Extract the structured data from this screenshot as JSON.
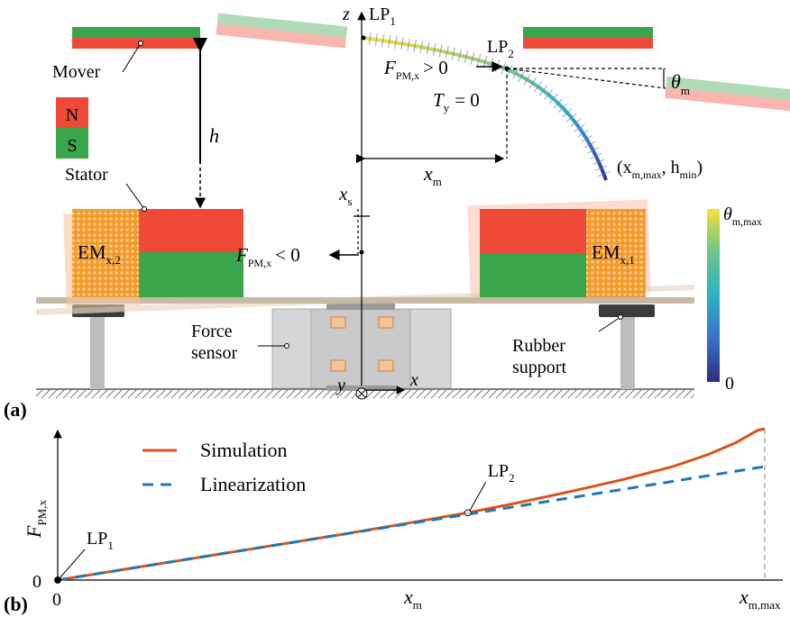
{
  "panel_a": {
    "label": "(a)",
    "axes": {
      "z": "z",
      "x": "x",
      "y": "y"
    },
    "legend_poles": {
      "north": "N",
      "south": "S"
    },
    "labels": {
      "mover": "Mover",
      "h": "h",
      "stator": "Stator",
      "em2_main": "EM",
      "em2_sub": "x,2",
      "em1_main": "EM",
      "em1_sub": "x,1",
      "force_sensor_1": "Force",
      "force_sensor_2": "sensor",
      "rubber_1": "Rubber",
      "rubber_2": "support",
      "xs_main": "x",
      "xs_sub": "s",
      "xm_main": "x",
      "xm_sub": "m",
      "lp1_main": "LP",
      "lp1_sub": "1",
      "lp2_main": "LP",
      "lp2_sub": "2",
      "fpos_main": "F",
      "fpos_sub": "PM,x",
      "fpos_rel": "> 0",
      "fneg_main": "F",
      "fneg_sub": "PM,x",
      "fneg_rel": "< 0",
      "ty_main": "T",
      "ty_sub": "y",
      "ty_rel": "= 0",
      "theta_main": "θ",
      "theta_sub": "m",
      "end_open": "(x",
      "end_sub1": "m,max",
      "end_mid": ", h",
      "end_sub2": "min",
      "end_close": ")"
    },
    "colorbar": {
      "top_main": "θ",
      "top_sub": "m,max",
      "bottom": "0",
      "colors": [
        "#2b2f7f",
        "#3a6fc9",
        "#2bb2c3",
        "#6cc58a",
        "#f5df3a"
      ]
    },
    "colors": {
      "north": "#ee4a37",
      "south": "#3aa64b",
      "em": "#f39a2e",
      "frame": "#c8b8a6"
    }
  },
  "panel_b": {
    "label": "(b)",
    "chart_data": {
      "type": "line",
      "xlabel_main": "x",
      "xlabel_sub": "m",
      "ylabel_main": "F",
      "ylabel_sub": "PM,x",
      "x_tick_start": "0",
      "x_tick_end_main": "x",
      "x_tick_end_sub": "m,max",
      "y_tick_start": "0",
      "x_range": [
        0,
        1
      ],
      "y_range": [
        0,
        1
      ],
      "series": [
        {
          "name": "Simulation",
          "color": "#d95319",
          "style": "solid",
          "x": [
            0,
            0.1,
            0.2,
            0.3,
            0.4,
            0.5,
            0.58,
            0.65,
            0.72,
            0.8,
            0.87,
            0.92,
            0.96,
            0.99,
            1.0
          ],
          "y": [
            0,
            0.075,
            0.15,
            0.225,
            0.3,
            0.38,
            0.445,
            0.51,
            0.58,
            0.665,
            0.75,
            0.83,
            0.91,
            0.99,
            1.0
          ]
        },
        {
          "name": "Linearization",
          "color": "#1f77b4",
          "style": "dashed",
          "x": [
            0,
            1.0
          ],
          "y": [
            0,
            0.75
          ]
        }
      ],
      "annotations": [
        {
          "main": "LP",
          "sub": "1",
          "x": 0,
          "y": 0
        },
        {
          "main": "LP",
          "sub": "2",
          "x": 0.58,
          "y": 0.445
        }
      ]
    }
  }
}
